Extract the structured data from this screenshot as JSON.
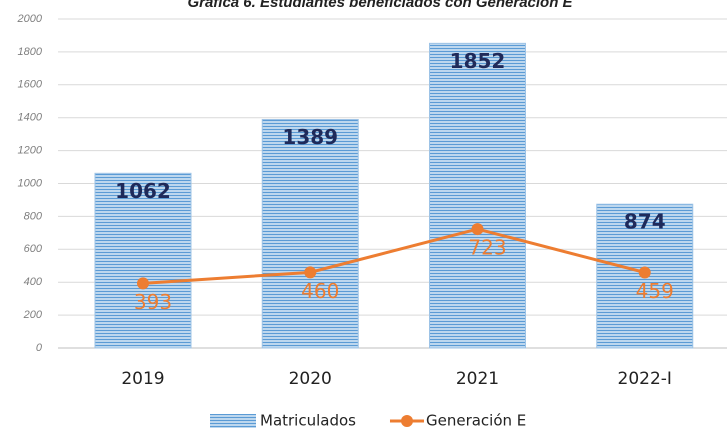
{
  "chart_data": {
    "type": "bar",
    "title": "Gráfica 6. Estudiantes beneficiados con Generación E",
    "categories": [
      "2019",
      "2020",
      "2021",
      "2022-I"
    ],
    "series": [
      {
        "name": "Matriculados",
        "type": "bar",
        "color": "#5b9bd5",
        "values": [
          1062,
          1389,
          1852,
          874
        ]
      },
      {
        "name": "Generación E",
        "type": "line",
        "color": "#ed7d31",
        "values": [
          393,
          460,
          723,
          459
        ]
      }
    ],
    "ylim": [
      0,
      2000
    ],
    "yticks": [
      0,
      200,
      400,
      600,
      800,
      1000,
      1200,
      1400,
      1600,
      1800,
      2000
    ],
    "grid": true,
    "legend": "bottom"
  }
}
